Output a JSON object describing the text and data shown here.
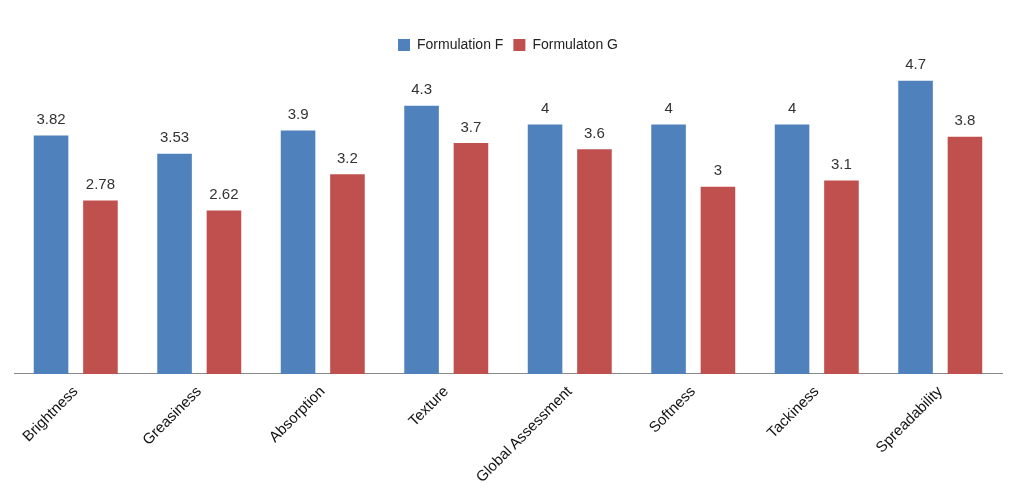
{
  "chart_data": {
    "type": "bar",
    "categories": [
      "Brightness",
      "Greasiness",
      "Absorption",
      "Texture",
      "Global Assessment",
      "Softness",
      "Tackiness",
      "Spreadability"
    ],
    "series": [
      {
        "name": "Formulation F",
        "color": "#4f81bd",
        "values": [
          3.82,
          3.53,
          3.9,
          4.3,
          4,
          4,
          4,
          4.7
        ]
      },
      {
        "name": "Formulaton G",
        "color": "#c0504d",
        "values": [
          2.78,
          2.62,
          3.2,
          3.7,
          3.6,
          3,
          3.1,
          3.8
        ]
      }
    ],
    "data_labels": true,
    "legend": "top",
    "grid": false
  }
}
